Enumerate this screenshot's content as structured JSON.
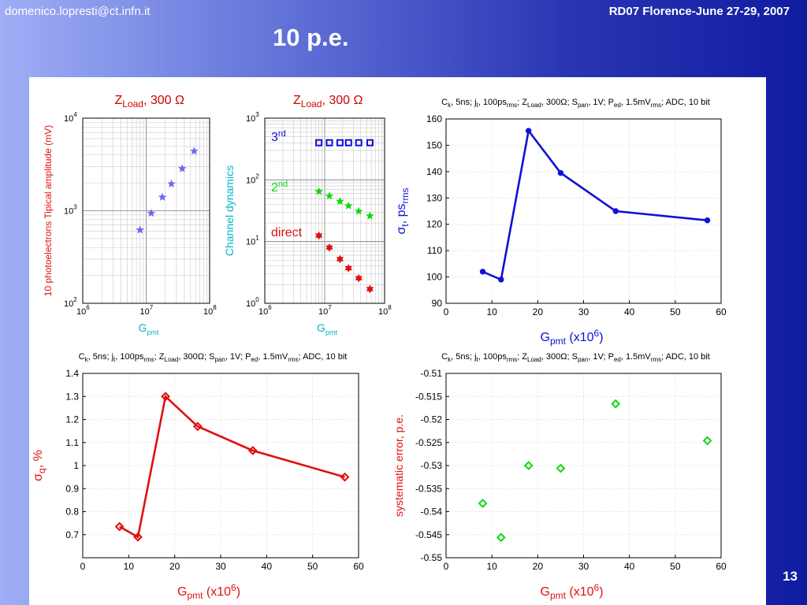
{
  "header": {
    "email": "domenico.lopresti@ct.infn.it",
    "conference": "RD07 Florence-June 27-29, 2007",
    "title": "10 p.e.",
    "slide_number": "13"
  },
  "colors": {
    "blue": "#1010d8",
    "red": "#e01010",
    "green": "#10d810",
    "cyan": "#00b8c8"
  },
  "chart_data": [
    {
      "id": "A",
      "type": "scatter",
      "title_main": "Z",
      "title_sub": "Load",
      "title_tail": ", 300 Ω",
      "title_color": "#d00000",
      "ylabel": "10 photoelectrons Tipical amplitude (mV)",
      "xlabel_main": "G",
      "xlabel_sub": "pmt",
      "xscale": "log",
      "yscale": "log",
      "xlim": [
        1000000,
        100000000
      ],
      "ylim": [
        100,
        10000
      ],
      "xticks": [
        {
          "v": 1000000,
          "b": "10",
          "e": "6"
        },
        {
          "v": 10000000,
          "b": "10",
          "e": "7"
        },
        {
          "v": 100000000,
          "b": "10",
          "e": "8"
        }
      ],
      "yticks": [
        {
          "v": 100,
          "b": "10",
          "e": "2"
        },
        {
          "v": 1000,
          "b": "10",
          "e": "3"
        },
        {
          "v": 10000,
          "b": "10",
          "e": "4"
        }
      ],
      "series": [
        {
          "marker": "star",
          "color": "#6b6bf0",
          "line": false,
          "x": [
            8000000,
            12000000,
            18000000,
            25000000,
            37000000,
            57000000
          ],
          "y": [
            620,
            940,
            1400,
            1950,
            2850,
            4400
          ]
        }
      ]
    },
    {
      "id": "B",
      "type": "scatter",
      "title_main": "Z",
      "title_sub": "Load",
      "title_tail": ", 300 Ω",
      "title_color": "#d00000",
      "ylabel": "Channel dynamics",
      "xlabel_main": "G",
      "xlabel_sub": "pmt",
      "xscale": "log",
      "yscale": "log",
      "xlim": [
        1000000,
        100000000
      ],
      "ylim": [
        1,
        1000
      ],
      "xticks": [
        {
          "v": 1000000,
          "b": "10",
          "e": "6"
        },
        {
          "v": 10000000,
          "b": "10",
          "e": "7"
        },
        {
          "v": 100000000,
          "b": "10",
          "e": "8"
        }
      ],
      "yticks": [
        {
          "v": 1,
          "b": "10",
          "e": "0"
        },
        {
          "v": 10,
          "b": "10",
          "e": "1"
        },
        {
          "v": 100,
          "b": "10",
          "e": "2"
        },
        {
          "v": 1000,
          "b": "10",
          "e": "3"
        }
      ],
      "series": [
        {
          "label_main": "3",
          "label_sup": "rd",
          "marker": "square",
          "color": "#1010d8",
          "line": false,
          "x": [
            8000000,
            12000000,
            18000000,
            25000000,
            37000000,
            57000000
          ],
          "y": [
            400,
            400,
            400,
            400,
            400,
            400
          ]
        },
        {
          "label_main": "2",
          "label_sup": "nd",
          "marker": "star",
          "color": "#10d810",
          "line": false,
          "x": [
            8000000,
            12000000,
            18000000,
            25000000,
            37000000,
            57000000
          ],
          "y": [
            65,
            55,
            45,
            38,
            31,
            26
          ]
        },
        {
          "label_main": "direct",
          "label_sup": "",
          "marker": "hexagram",
          "color": "#e01010",
          "line": false,
          "x": [
            8000000,
            12000000,
            18000000,
            25000000,
            37000000,
            57000000
          ],
          "y": [
            12.5,
            8,
            5.2,
            3.7,
            2.55,
            1.7
          ]
        }
      ]
    },
    {
      "id": "C",
      "type": "line",
      "title": "C",
      "title_html": "C<tspan font-size='8' dy='3'>k</tspan><tspan dy='-3'>, 5ns; j</tspan><tspan font-size='8' dy='3'>t</tspan><tspan dy='-3'>, 100ps</tspan><tspan font-size='8' dy='3'>rms</tspan><tspan dy='-3'>; Z</tspan><tspan font-size='8' dy='3'>Load</tspan><tspan dy='-3'>, 300Ω; S</tspan><tspan font-size='8' dy='3'>pan</tspan><tspan dy='-3'>, 1V; P</tspan><tspan font-size='8' dy='3'>ed</tspan><tspan dy='-3'>, 1.5mV</tspan><tspan font-size='8' dy='3'>rms</tspan><tspan dy='-3'>; ADC, 10 bit</tspan>",
      "title_text": "Ck, 5ns; jt, 100psrms; ZLoad, 300Ω; Span, 1V; Ped, 1.5mVrms; ADC, 10 bit",
      "ylabel_main": "σ",
      "ylabel_sub": "t",
      "ylabel_tail": ", ps",
      "ylabel_sub2": "rms",
      "label_color": "#1010d8",
      "xlabel_main": "G",
      "xlabel_sub": "pmt",
      "xlabel_tail": " (x10",
      "xlabel_sup": "6",
      "xlabel_end": ")",
      "xlim": [
        0,
        60
      ],
      "ylim": [
        90,
        160
      ],
      "xticks": [
        0,
        10,
        20,
        30,
        40,
        50,
        60
      ],
      "yticks": [
        90,
        100,
        110,
        120,
        130,
        140,
        150,
        160
      ],
      "series": [
        {
          "marker": "circle",
          "color": "#1010d8",
          "line": true,
          "x": [
            8,
            12,
            18,
            25,
            37,
            57
          ],
          "y": [
            102,
            99,
            155.5,
            139.5,
            125,
            121.5
          ]
        }
      ]
    },
    {
      "id": "D",
      "type": "line",
      "title_text": "Ck, 5ns; jt, 100psrms; ZLoad, 300Ω; Span, 1V; Ped, 1.5mVrms; ADC, 10 bit",
      "ylabel_main": "σ",
      "ylabel_sub": "q",
      "ylabel_tail": ", %",
      "label_color": "#e01010",
      "xlabel_main": "G",
      "xlabel_sub": "pmt",
      "xlabel_tail": " (x10",
      "xlabel_sup": "6",
      "xlabel_end": ")",
      "xlim": [
        0,
        60
      ],
      "ylim": [
        0.6,
        1.4
      ],
      "xticks": [
        0,
        10,
        20,
        30,
        40,
        50,
        60
      ],
      "yticks": [
        0.7,
        0.8,
        0.9,
        1,
        1.1,
        1.2,
        1.3,
        1.4
      ],
      "series": [
        {
          "marker": "diamond",
          "color": "#e01010",
          "line": true,
          "x": [
            8,
            12,
            18,
            25,
            37,
            57
          ],
          "y": [
            0.735,
            0.69,
            1.3,
            1.17,
            1.065,
            0.95
          ]
        }
      ]
    },
    {
      "id": "E",
      "type": "scatter",
      "title_text": "Ck, 5ns; jt, 100psrms; ZLoad, 300Ω; Span, 1V; Ped, 1.5mVrms; ADC, 10 bit",
      "ylabel_main": "systematic error, p.e.",
      "label_color": "#e01010",
      "xlabel_main": "G",
      "xlabel_sub": "pmt",
      "xlabel_tail": " (x10",
      "xlabel_sup": "6",
      "xlabel_end": ")",
      "xlim": [
        0,
        60
      ],
      "ylim": [
        -0.55,
        -0.51
      ],
      "xticks": [
        0,
        10,
        20,
        30,
        40,
        50,
        60
      ],
      "yticks": [
        -0.55,
        -0.545,
        -0.54,
        -0.535,
        -0.53,
        -0.525,
        -0.52,
        -0.515,
        -0.51
      ],
      "series": [
        {
          "marker": "diamond",
          "color": "#10d810",
          "line": false,
          "x": [
            8,
            12,
            18,
            25,
            37,
            57
          ],
          "y": [
            -0.5382,
            -0.5456,
            -0.53,
            -0.5306,
            -0.5166,
            -0.5246
          ]
        }
      ]
    }
  ]
}
